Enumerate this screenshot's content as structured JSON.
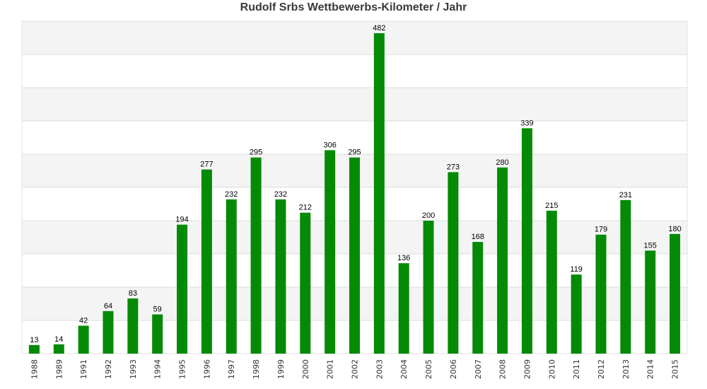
{
  "chart_data": {
    "type": "bar",
    "title": "Rudolf Srbs Wettbewerbs-Kilometer / Jahr",
    "xlabel": "",
    "ylabel": "",
    "categories": [
      "1988",
      "1989",
      "1991",
      "1992",
      "1993",
      "1994",
      "1995",
      "1996",
      "1997",
      "1998",
      "1999",
      "2000",
      "2001",
      "2002",
      "2003",
      "2004",
      "2005",
      "2006",
      "2007",
      "2008",
      "2009",
      "2010",
      "2011",
      "2012",
      "2013",
      "2014",
      "2015"
    ],
    "values": [
      13,
      14,
      42,
      64,
      83,
      59,
      194,
      277,
      232,
      295,
      232,
      212,
      306,
      295,
      482,
      136,
      200,
      273,
      168,
      280,
      339,
      215,
      119,
      179,
      231,
      155,
      180
    ],
    "ylim": [
      0,
      500
    ],
    "grid": "horizontal bands",
    "legend": "none",
    "value_labels": true,
    "colors": {
      "bar": "#058a05",
      "band": "#f4f4f4",
      "grid_line": "#dcdcdc"
    }
  }
}
